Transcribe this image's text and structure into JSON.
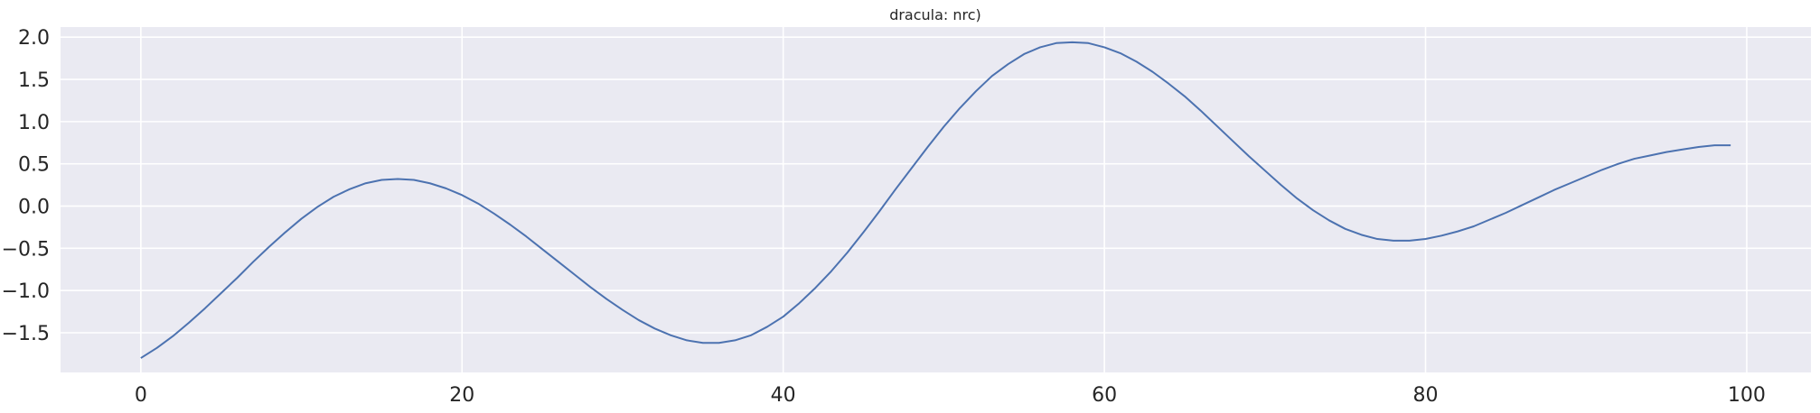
{
  "chart_data": {
    "type": "line",
    "title": "dracula: nrc)",
    "xlabel": "",
    "ylabel": "",
    "xlim": [
      -5,
      104
    ],
    "ylim": [
      -1.97,
      2.12
    ],
    "grid": true,
    "legend": "none",
    "x_ticks": [
      0,
      20,
      40,
      60,
      80,
      100
    ],
    "x_tick_labels": [
      "0",
      "20",
      "40",
      "60",
      "80",
      "100"
    ],
    "y_ticks": [
      -1.5,
      -1.0,
      -0.5,
      0.0,
      0.5,
      1.0,
      1.5,
      2.0
    ],
    "y_tick_labels": [
      "−1.5",
      "−1.0",
      "−0.5",
      "0.0",
      "0.5",
      "1.0",
      "1.5",
      "2.0"
    ],
    "colors": {
      "background": "#eaeaf2",
      "grid": "#ffffff",
      "line": "#4c72b0"
    },
    "series": [
      {
        "x": [
          0,
          1,
          2,
          3,
          4,
          5,
          6,
          7,
          8,
          9,
          10,
          11,
          12,
          13,
          14,
          15,
          16,
          17,
          18,
          19,
          20,
          21,
          22,
          23,
          24,
          25,
          26,
          27,
          28,
          29,
          30,
          31,
          32,
          33,
          34,
          35,
          36,
          37,
          38,
          39,
          40,
          41,
          42,
          43,
          44,
          45,
          46,
          47,
          48,
          49,
          50,
          51,
          52,
          53,
          54,
          55,
          56,
          57,
          58,
          59,
          60,
          61,
          62,
          63,
          64,
          65,
          66,
          67,
          68,
          69,
          70,
          71,
          72,
          73,
          74,
          75,
          76,
          77,
          78,
          79,
          80,
          81,
          82,
          83,
          84,
          85,
          86,
          87,
          88,
          89,
          90,
          91,
          92,
          93,
          94,
          95,
          96,
          97,
          98,
          99
        ],
        "values": [
          -1.8,
          -1.68,
          -1.54,
          -1.38,
          -1.21,
          -1.03,
          -0.85,
          -0.66,
          -0.48,
          -0.31,
          -0.15,
          -0.01,
          0.11,
          0.2,
          0.27,
          0.31,
          0.32,
          0.31,
          0.27,
          0.21,
          0.13,
          0.03,
          -0.09,
          -0.22,
          -0.36,
          -0.51,
          -0.66,
          -0.81,
          -0.96,
          -1.1,
          -1.23,
          -1.35,
          -1.45,
          -1.53,
          -1.59,
          -1.62,
          -1.62,
          -1.59,
          -1.53,
          -1.43,
          -1.31,
          -1.15,
          -0.97,
          -0.77,
          -0.55,
          -0.31,
          -0.06,
          0.2,
          0.45,
          0.7,
          0.94,
          1.16,
          1.36,
          1.54,
          1.68,
          1.8,
          1.88,
          1.93,
          1.94,
          1.93,
          1.88,
          1.81,
          1.71,
          1.59,
          1.45,
          1.3,
          1.13,
          0.95,
          0.77,
          0.59,
          0.42,
          0.25,
          0.09,
          -0.05,
          -0.17,
          -0.27,
          -0.34,
          -0.39,
          -0.41,
          -0.41,
          -0.39,
          -0.35,
          -0.3,
          -0.24,
          -0.16,
          -0.08,
          0.01,
          0.1,
          0.19,
          0.27,
          0.35,
          0.43,
          0.5,
          0.56,
          0.6,
          0.64,
          0.67,
          0.7,
          0.72,
          0.72
        ]
      }
    ]
  }
}
